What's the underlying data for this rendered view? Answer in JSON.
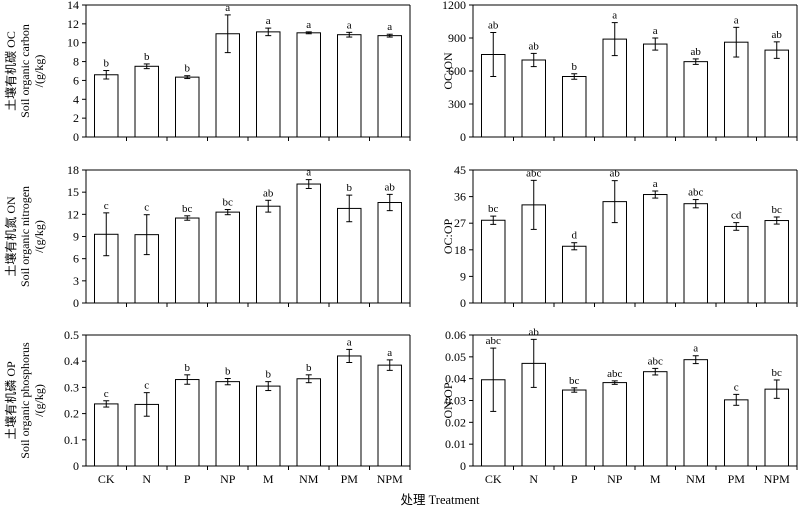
{
  "figure": {
    "xlabel": "处理 Treatment",
    "categories": [
      "CK",
      "N",
      "P",
      "NP",
      "M",
      "NM",
      "PM",
      "NPM"
    ]
  },
  "chart_data": [
    {
      "type": "bar",
      "panel": "top-left",
      "ylabel_lines": [
        "土壤有机碳 OC",
        "Soil organic carbon",
        "/(g/kg)"
      ],
      "ylim": [
        0,
        14
      ],
      "yticks": [
        0,
        2,
        4,
        6,
        8,
        10,
        12,
        14
      ],
      "tick_labels": [
        "0",
        "2",
        "4",
        "6",
        "8",
        "10",
        "12",
        "14"
      ],
      "categories": [
        "CK",
        "N",
        "P",
        "NP",
        "M",
        "NM",
        "PM",
        "NPM"
      ],
      "values": [
        6.6,
        7.5,
        6.35,
        10.95,
        11.15,
        11.05,
        10.85,
        10.75
      ],
      "errors": [
        0.45,
        0.25,
        0.15,
        2.0,
        0.4,
        0.1,
        0.25,
        0.15
      ],
      "labels": [
        "b",
        "b",
        "b",
        "a",
        "a",
        "a",
        "a",
        "a"
      ]
    },
    {
      "type": "bar",
      "panel": "top-right",
      "ylabel_lines": [
        "OC:ON"
      ],
      "ylim": [
        0,
        1200
      ],
      "yticks": [
        0,
        300,
        600,
        900,
        1200
      ],
      "tick_labels": [
        "0",
        "300",
        "600",
        "900",
        "1200"
      ],
      "categories": [
        "CK",
        "N",
        "P",
        "NP",
        "M",
        "NM",
        "PM",
        "NPM"
      ],
      "values": [
        750,
        700,
        550,
        890,
        845,
        685,
        862,
        790
      ],
      "errors": [
        200,
        60,
        25,
        150,
        55,
        25,
        135,
        75
      ],
      "labels": [
        "ab",
        "ab",
        "b",
        "a",
        "a",
        "ab",
        "a",
        "ab"
      ]
    },
    {
      "type": "bar",
      "panel": "middle-left",
      "ylabel_lines": [
        "土壤有机氮 ON",
        "Soil organic nitrogen",
        "/(g/kg)"
      ],
      "ylim": [
        0,
        18
      ],
      "yticks": [
        0,
        3,
        6,
        9,
        12,
        15,
        18
      ],
      "tick_labels": [
        "0",
        "3",
        "6",
        "9",
        "12",
        "15",
        "18"
      ],
      "categories": [
        "CK",
        "N",
        "P",
        "NP",
        "M",
        "NM",
        "PM",
        "NPM"
      ],
      "values": [
        9.3,
        9.25,
        11.5,
        12.3,
        13.1,
        16.1,
        12.8,
        13.6
      ],
      "errors": [
        2.9,
        2.7,
        0.3,
        0.35,
        0.8,
        0.6,
        1.8,
        1.1
      ],
      "labels": [
        "c",
        "c",
        "bc",
        "bc",
        "ab",
        "a",
        "b",
        "ab"
      ]
    },
    {
      "type": "bar",
      "panel": "middle-right",
      "ylabel_lines": [
        "OC:OP"
      ],
      "ylim": [
        0,
        45
      ],
      "yticks": [
        0,
        9,
        18,
        27,
        36,
        45
      ],
      "tick_labels": [
        "0",
        "9",
        "18",
        "27",
        "36",
        "45"
      ],
      "categories": [
        "CK",
        "N",
        "P",
        "NP",
        "M",
        "NM",
        "PM",
        "NPM"
      ],
      "values": [
        28,
        33.2,
        19.2,
        34.3,
        36.7,
        33.6,
        25.9,
        27.9
      ],
      "errors": [
        1.4,
        8.3,
        1.2,
        7.1,
        1.2,
        1.4,
        1.3,
        1.2
      ],
      "labels": [
        "bc",
        "abc",
        "d",
        "ab",
        "a",
        "abc",
        "cd",
        "bc"
      ]
    },
    {
      "type": "bar",
      "panel": "bottom-left",
      "ylabel_lines": [
        "土壤有机磷 OP",
        "Soil organic phosphorus",
        "/(g/kg)"
      ],
      "ylim": [
        0,
        0.5
      ],
      "yticks": [
        0,
        0.1,
        0.2,
        0.3,
        0.4,
        0.5
      ],
      "tick_labels": [
        "0",
        "0.1",
        "0.2",
        "0.3",
        "0.4",
        "0.5"
      ],
      "categories": [
        "CK",
        "N",
        "P",
        "NP",
        "M",
        "NM",
        "PM",
        "NPM"
      ],
      "values": [
        0.237,
        0.235,
        0.33,
        0.322,
        0.305,
        0.333,
        0.42,
        0.385
      ],
      "errors": [
        0.012,
        0.045,
        0.018,
        0.012,
        0.017,
        0.015,
        0.025,
        0.02
      ],
      "labels": [
        "c",
        "c",
        "b",
        "b",
        "b",
        "b",
        "a",
        "a"
      ]
    },
    {
      "type": "bar",
      "panel": "bottom-right",
      "ylabel_lines": [
        "ON:OP"
      ],
      "ylim": [
        0,
        0.06
      ],
      "yticks": [
        0,
        0.01,
        0.02,
        0.03,
        0.04,
        0.05,
        0.06
      ],
      "tick_labels": [
        "0",
        "0.01",
        "0.02",
        "0.03",
        "0.04",
        "0.05",
        "0.06"
      ],
      "categories": [
        "CK",
        "N",
        "P",
        "NP",
        "M",
        "NM",
        "PM",
        "NPM"
      ],
      "values": [
        0.0395,
        0.047,
        0.0348,
        0.0382,
        0.0432,
        0.0487,
        0.0303,
        0.0352
      ],
      "errors": [
        0.0145,
        0.011,
        0.001,
        0.0008,
        0.0015,
        0.0018,
        0.0025,
        0.0042
      ],
      "labels": [
        "abc",
        "ab",
        "bc",
        "abc",
        "abc",
        "a",
        "c",
        "bc"
      ]
    }
  ]
}
